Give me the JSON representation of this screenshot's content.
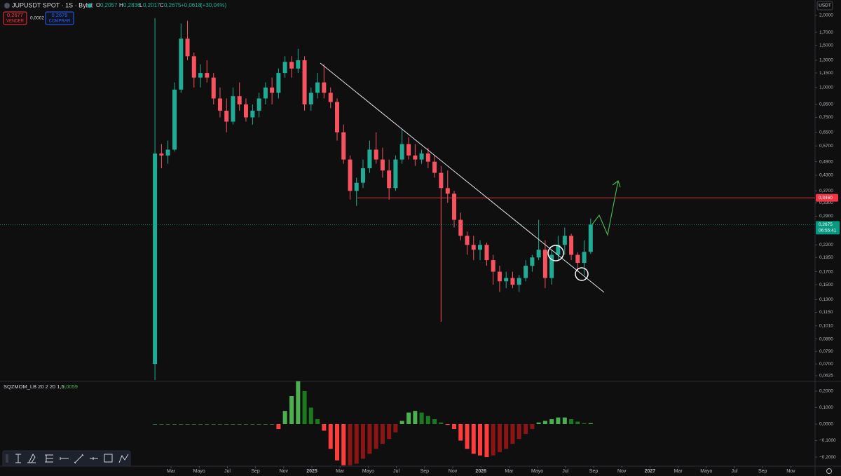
{
  "ui": {
    "symbol": "JUPUSDT SPOT · 1S · Bybit",
    "ohlc": [
      {
        "key": "O",
        "value": 0.2057,
        "label": "0,2057"
      },
      {
        "key": "H",
        "value": 0.2836,
        "label": "0,2836"
      },
      {
        "key": "L",
        "value": 0.2017,
        "label": "0,2017"
      },
      {
        "key": "C",
        "value": 0.2675,
        "label": "0,2675"
      }
    ],
    "change": {
      "value": 0.0618,
      "label": "+0,0618"
    },
    "change_pct": {
      "value": 30.04,
      "label": "(+30,04%)"
    },
    "sell": {
      "value": 0.2677,
      "label": "0,2677",
      "text": "VENDER"
    },
    "spread": {
      "value": 0.0002,
      "label": "0,0002"
    },
    "buy": {
      "value": 0.2679,
      "label": "0,2679",
      "text": "COMPRAR"
    },
    "currency": "USDT"
  },
  "chart_data": [
    {
      "type": "candlestick",
      "log_scale": true,
      "grid": false,
      "up_color": "#22ab94",
      "down_color": "#f7525f",
      "x": [
        0.86,
        1.32,
        1.78,
        2.25,
        2.71,
        3.17,
        3.63,
        4.09,
        4.55,
        5.02,
        5.48,
        5.94,
        6.4,
        6.86,
        7.32,
        7.79,
        8.25,
        8.71,
        9.17,
        9.63,
        10.09,
        10.56,
        11.02,
        11.48,
        11.94,
        12.4,
        12.86,
        13.33,
        13.79,
        14.25,
        14.71,
        15.17,
        15.63,
        16.1,
        16.56,
        17.02,
        17.48,
        17.94,
        18.4,
        18.87,
        19.33,
        19.79,
        20.25,
        20.71,
        21.17,
        21.64,
        22.1,
        22.56,
        23.02,
        23.48,
        23.94,
        24.41,
        24.87,
        25.33,
        25.79,
        26.25,
        26.71,
        27.18,
        27.64,
        28.1,
        28.56,
        29.02,
        29.48,
        29.95,
        30.41,
        30.87,
        31.33,
        31.79
      ],
      "open": [
        0.07,
        0.53,
        0.52,
        0.55,
        0.98,
        1.6,
        1.35,
        1.1,
        1.15,
        1.1,
        0.9,
        0.8,
        0.72,
        0.92,
        0.85,
        0.75,
        0.8,
        0.9,
        1.0,
        0.95,
        1.15,
        1.28,
        1.2,
        1.3,
        0.85,
        0.95,
        1.05,
        0.95,
        0.87,
        0.65,
        0.5,
        0.37,
        0.4,
        0.46,
        0.55,
        0.5,
        0.45,
        0.38,
        0.5,
        0.58,
        0.52,
        0.5,
        0.53,
        0.49,
        0.44,
        0.38,
        0.36,
        0.28,
        0.24,
        0.22,
        0.21,
        0.22,
        0.19,
        0.17,
        0.155,
        0.16,
        0.15,
        0.16,
        0.18,
        0.195,
        0.21,
        0.16,
        0.2,
        0.22,
        0.24,
        0.2,
        0.185,
        0.2057
      ],
      "high": [
        1.95,
        0.58,
        0.6,
        1.05,
        1.85,
        1.9,
        1.4,
        1.25,
        1.3,
        1.15,
        1.0,
        0.9,
        1.0,
        1.05,
        0.9,
        0.85,
        0.95,
        1.05,
        1.1,
        1.2,
        1.35,
        1.35,
        1.45,
        1.35,
        1.0,
        1.15,
        1.25,
        1.0,
        0.9,
        0.7,
        0.52,
        0.42,
        0.5,
        0.6,
        0.65,
        0.56,
        0.5,
        0.52,
        0.67,
        0.62,
        0.58,
        0.55,
        0.56,
        0.52,
        0.47,
        0.45,
        0.37,
        0.3,
        0.25,
        0.24,
        0.23,
        0.225,
        0.2,
        0.18,
        0.17,
        0.17,
        0.165,
        0.19,
        0.2,
        0.28,
        0.23,
        0.21,
        0.24,
        0.26,
        0.245,
        0.205,
        0.23,
        0.2836
      ],
      "low": [
        0.06,
        0.46,
        0.48,
        0.54,
        0.95,
        1.3,
        1.0,
        1.0,
        1.05,
        0.85,
        0.75,
        0.65,
        0.7,
        0.8,
        0.72,
        0.7,
        0.75,
        0.85,
        0.85,
        0.9,
        1.1,
        1.1,
        1.15,
        0.8,
        0.8,
        0.9,
        0.9,
        0.82,
        0.6,
        0.48,
        0.34,
        0.32,
        0.38,
        0.44,
        0.48,
        0.42,
        0.34,
        0.37,
        0.48,
        0.5,
        0.47,
        0.48,
        0.46,
        0.42,
        0.105,
        0.33,
        0.26,
        0.23,
        0.2,
        0.19,
        0.19,
        0.18,
        0.15,
        0.14,
        0.145,
        0.145,
        0.14,
        0.155,
        0.17,
        0.19,
        0.145,
        0.15,
        0.19,
        0.2,
        0.19,
        0.17,
        0.165,
        0.2017
      ],
      "close": [
        0.53,
        0.52,
        0.55,
        0.98,
        1.6,
        1.35,
        1.1,
        1.15,
        1.1,
        0.9,
        0.8,
        0.72,
        0.92,
        0.85,
        0.75,
        0.8,
        0.9,
        1.0,
        0.95,
        1.15,
        1.28,
        1.2,
        1.3,
        0.85,
        0.95,
        1.05,
        0.95,
        0.87,
        0.65,
        0.5,
        0.37,
        0.4,
        0.46,
        0.55,
        0.5,
        0.45,
        0.38,
        0.5,
        0.58,
        0.52,
        0.5,
        0.53,
        0.49,
        0.44,
        0.38,
        0.36,
        0.28,
        0.24,
        0.22,
        0.21,
        0.22,
        0.19,
        0.17,
        0.155,
        0.16,
        0.15,
        0.16,
        0.18,
        0.195,
        0.21,
        0.16,
        0.2,
        0.22,
        0.24,
        0.2,
        0.185,
        0.2057,
        0.2675
      ],
      "xlim": [
        -10.14,
        47.72
      ],
      "ylim": [
        0.0596,
        2.32
      ],
      "xticks": [
        {
          "value": 2,
          "label": "Mar"
        },
        {
          "value": 4,
          "label": "Mayo"
        },
        {
          "value": 6,
          "label": "Jul"
        },
        {
          "value": 8,
          "label": "Sep"
        },
        {
          "value": 10,
          "label": "Nov"
        },
        {
          "value": 12,
          "label": "2025"
        },
        {
          "value": 14,
          "label": "Mar"
        },
        {
          "value": 16,
          "label": "Mayo"
        },
        {
          "value": 18,
          "label": "Jul"
        },
        {
          "value": 20,
          "label": "Sep"
        },
        {
          "value": 22,
          "label": "Nov"
        },
        {
          "value": 24,
          "label": "2026"
        },
        {
          "value": 26,
          "label": "Mar"
        },
        {
          "value": 28,
          "label": "Mayo"
        },
        {
          "value": 30,
          "label": "Jul"
        },
        {
          "value": 32,
          "label": "Sep"
        },
        {
          "value": 34,
          "label": "Nov"
        },
        {
          "value": 36,
          "label": "2027"
        },
        {
          "value": 38,
          "label": "Mar"
        },
        {
          "value": 40,
          "label": "Mayo"
        },
        {
          "value": 42,
          "label": "Jul"
        },
        {
          "value": 44,
          "label": "Sep"
        },
        {
          "value": 46,
          "label": "Nov"
        }
      ],
      "yticks": [
        {
          "value": 2.0,
          "label": "2,0000"
        },
        {
          "value": 1.7,
          "label": "1,7000"
        },
        {
          "value": 1.5,
          "label": "1,5000"
        },
        {
          "value": 1.3,
          "label": "1,3000"
        },
        {
          "value": 1.15,
          "label": "1,1500"
        },
        {
          "value": 1.0,
          "label": "1,0000"
        },
        {
          "value": 0.85,
          "label": "0,8500"
        },
        {
          "value": 0.75,
          "label": "0,7500"
        },
        {
          "value": 0.65,
          "label": "0,6500"
        },
        {
          "value": 0.57,
          "label": "0,5700"
        },
        {
          "value": 0.49,
          "label": "0,4900"
        },
        {
          "value": 0.43,
          "label": "0,4300"
        },
        {
          "value": 0.37,
          "label": "0,3700"
        },
        {
          "value": 0.33,
          "label": "0,3300"
        },
        {
          "value": 0.29,
          "label": "0,2900"
        },
        {
          "value": 0.22,
          "label": "0,2200"
        },
        {
          "value": 0.195,
          "label": "0,1950"
        },
        {
          "value": 0.17,
          "label": "0,1700"
        },
        {
          "value": 0.15,
          "label": "0,1500"
        },
        {
          "value": 0.13,
          "label": "0,1300"
        },
        {
          "value": 0.115,
          "label": "0,1150"
        },
        {
          "value": 0.101,
          "label": "0,1010"
        },
        {
          "value": 0.089,
          "label": "0,0890"
        },
        {
          "value": 0.079,
          "label": "0,0790"
        },
        {
          "value": 0.07,
          "label": "0,0700"
        },
        {
          "value": 0.0625,
          "label": "0,0625"
        }
      ],
      "hline": {
        "value": 0.346,
        "label": "0,3460",
        "color": "#f23645"
      },
      "last": {
        "value": 0.2675,
        "label": "0,2675",
        "color": "#089981"
      },
      "countdown": "06:55:41"
    },
    {
      "type": "bar",
      "title": "SQZMOM_LB 20 2 20 1,5",
      "values": [
        0,
        0,
        0,
        0,
        0,
        0,
        0,
        0,
        0,
        0,
        0,
        0,
        0,
        0,
        0,
        0,
        0,
        0,
        0,
        -0.03,
        0.08,
        0.17,
        0.26,
        0.2,
        0.1,
        0.03,
        -0.04,
        -0.15,
        -0.22,
        -0.25,
        -0.25,
        -0.24,
        -0.21,
        -0.18,
        -0.15,
        -0.12,
        -0.09,
        -0.05,
        0.02,
        0.07,
        0.08,
        0.07,
        0.05,
        0.03,
        0.01,
        -0.005,
        -0.03,
        -0.1,
        -0.15,
        -0.18,
        -0.19,
        -0.2,
        -0.19,
        -0.17,
        -0.15,
        -0.12,
        -0.09,
        -0.06,
        -0.03,
        0.01,
        0.02,
        0.03,
        0.04,
        0.04,
        0.03,
        0.015,
        0.005,
        0.0059
      ],
      "colors": {
        "positive_rising": "#4caf50",
        "positive_falling": "#1b7a20",
        "negative_falling": "#ff3b3b",
        "negative_rising": "#8b1414"
      },
      "last": {
        "value": 0.0059,
        "label": "0,0059"
      },
      "ylim": [
        -0.255,
        0.255
      ],
      "yticks": [
        {
          "value": 0.2,
          "label": "0,2000"
        },
        {
          "value": 0.1,
          "label": "0,1000"
        },
        {
          "value": 0,
          "label": "0,0000"
        },
        {
          "value": -0.1,
          "label": "−0,1000"
        },
        {
          "value": -0.2,
          "label": "−0,2000"
        }
      ]
    }
  ]
}
